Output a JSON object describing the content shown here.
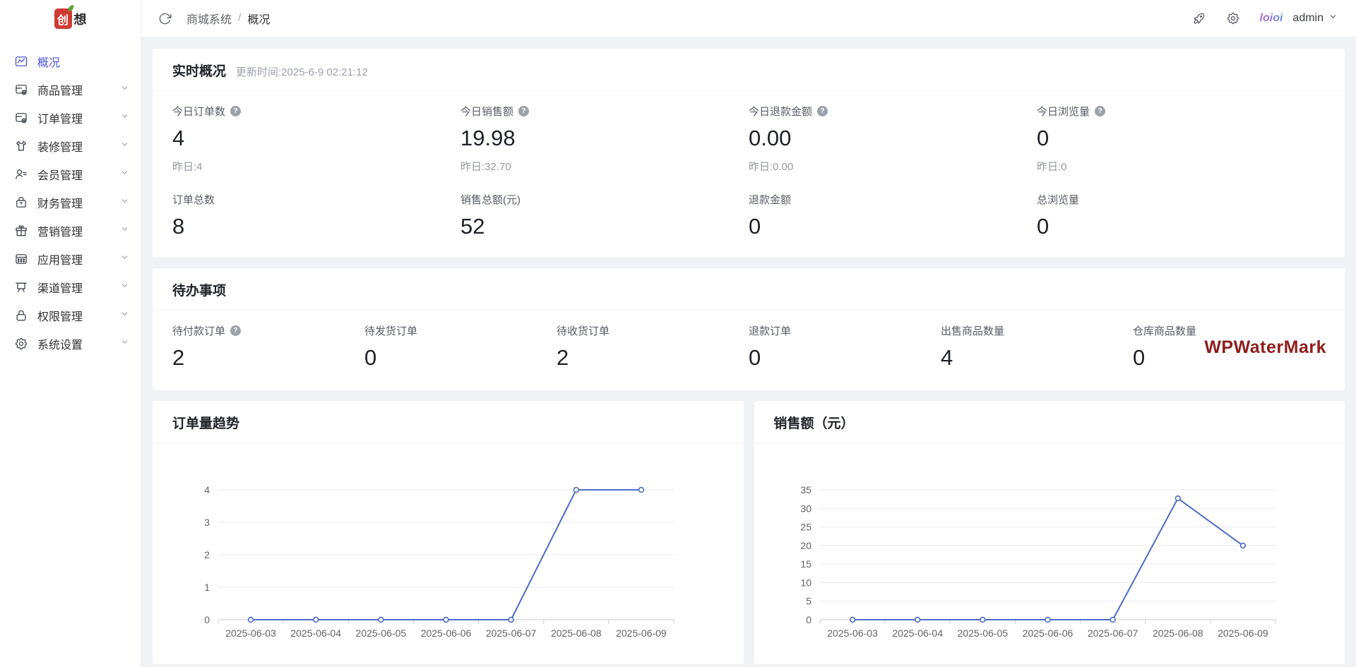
{
  "colors": {
    "accent": "#4a55de",
    "chart_line": "#4e6bc8",
    "watermark_red": "#8f1d1d",
    "logo_red": "#cf3a32"
  },
  "app": {
    "logo_primary": "创",
    "logo_secondary": "想"
  },
  "header": {
    "breadcrumb": {
      "root": "商城系统",
      "sep": "/",
      "current": "概况"
    },
    "watermark_user": "loioi",
    "username": "admin"
  },
  "sidebar": {
    "items": [
      {
        "label": "概况",
        "icon": "overview-icon",
        "active": true,
        "expandable": false
      },
      {
        "label": "商品管理",
        "icon": "goods-icon",
        "active": false,
        "expandable": true
      },
      {
        "label": "订单管理",
        "icon": "orders-icon",
        "active": false,
        "expandable": true
      },
      {
        "label": "装修管理",
        "icon": "decorate-icon",
        "active": false,
        "expandable": true
      },
      {
        "label": "会员管理",
        "icon": "members-icon",
        "active": false,
        "expandable": true
      },
      {
        "label": "财务管理",
        "icon": "finance-icon",
        "active": false,
        "expandable": true
      },
      {
        "label": "营销管理",
        "icon": "marketing-icon",
        "active": false,
        "expandable": true
      },
      {
        "label": "应用管理",
        "icon": "apps-icon",
        "active": false,
        "expandable": true
      },
      {
        "label": "渠道管理",
        "icon": "channel-icon",
        "active": false,
        "expandable": true
      },
      {
        "label": "权限管理",
        "icon": "permission-icon",
        "active": false,
        "expandable": true
      },
      {
        "label": "系统设置",
        "icon": "settings-icon",
        "active": false,
        "expandable": true
      }
    ]
  },
  "realtime": {
    "title": "实时概况",
    "update_time": "更新时间:2025-6-9 02:21:12",
    "today_stats": [
      {
        "label": "今日订单数",
        "help": true,
        "value": "4",
        "sub": "昨日:4"
      },
      {
        "label": "今日销售额",
        "help": true,
        "value": "19.98",
        "sub": "昨日:32.70"
      },
      {
        "label": "今日退款金额",
        "help": true,
        "value": "0.00",
        "sub": "昨日:0.00"
      },
      {
        "label": "今日浏览量",
        "help": true,
        "value": "0",
        "sub": "昨日:0"
      }
    ],
    "total_stats": [
      {
        "label": "订单总数",
        "help": false,
        "value": "8"
      },
      {
        "label": "销售总额(元)",
        "help": false,
        "value": "52"
      },
      {
        "label": "退款金额",
        "help": false,
        "value": "0"
      },
      {
        "label": "总浏览量",
        "help": false,
        "value": "0"
      }
    ]
  },
  "todo": {
    "title": "待办事项",
    "watermark": "WPWaterMark",
    "items": [
      {
        "label": "待付款订单",
        "help": true,
        "value": "2"
      },
      {
        "label": "待发货订单",
        "help": false,
        "value": "0"
      },
      {
        "label": "待收货订单",
        "help": false,
        "value": "2"
      },
      {
        "label": "退款订单",
        "help": false,
        "value": "0"
      },
      {
        "label": "出售商品数量",
        "help": false,
        "value": "4"
      },
      {
        "label": "仓库商品数量",
        "help": false,
        "value": "0"
      }
    ]
  },
  "chart_data": [
    {
      "type": "line",
      "title": "订单量趋势",
      "categories": [
        "2025-06-03",
        "2025-06-04",
        "2025-06-05",
        "2025-06-06",
        "2025-06-07",
        "2025-06-08",
        "2025-06-09"
      ],
      "values": [
        0,
        0,
        0,
        0,
        0,
        4,
        4
      ],
      "xlabel": "",
      "ylabel": "",
      "ylim": [
        0,
        4
      ],
      "ytick_step": 1,
      "grid": true,
      "legend": false,
      "line_color": "#4e6bc8"
    },
    {
      "type": "line",
      "title": "销售额（元）",
      "categories": [
        "2025-06-03",
        "2025-06-04",
        "2025-06-05",
        "2025-06-06",
        "2025-06-07",
        "2025-06-08",
        "2025-06-09"
      ],
      "values": [
        0,
        0,
        0,
        0,
        0,
        32.7,
        19.98
      ],
      "xlabel": "",
      "ylabel": "",
      "ylim": [
        0,
        35
      ],
      "ytick_step": 5,
      "grid": true,
      "legend": false,
      "line_color": "#4e6bc8"
    }
  ]
}
